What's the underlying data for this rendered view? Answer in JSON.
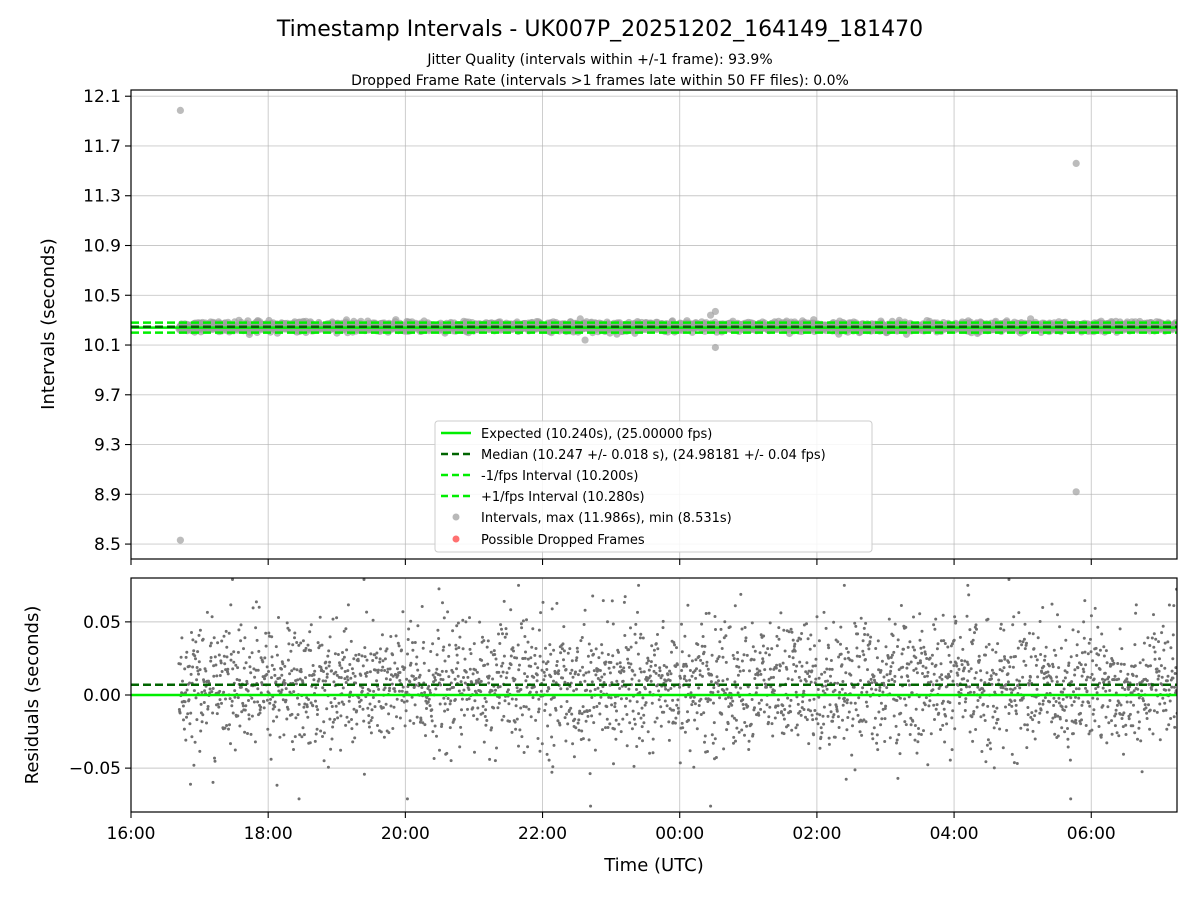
{
  "title": "Timestamp Intervals - UK007P_20251202_164149_181470",
  "subtitle_lines": [
    "Jitter Quality (intervals within +/-1 frame): 93.9%",
    "Dropped Frame Rate (intervals >1 frames late within 50 FF files): 0.0%"
  ],
  "colors": {
    "expected": "#00ee00",
    "median": "#006400",
    "bounds": "#00ee00",
    "points": "#a0a0a0",
    "residual_points": "#707070",
    "dropped": "#ff4040",
    "grid": "#b0b0b0"
  },
  "chart_data": [
    {
      "type": "scatter",
      "ylabel": "Intervals (seconds)",
      "xlabel": "",
      "x_unit": "hours since 16:00 UTC",
      "xlim": [
        16.0,
        31.25
      ],
      "ylim": [
        8.38,
        12.15
      ],
      "x_ticks": [
        16,
        18,
        20,
        22,
        24,
        26,
        28,
        30
      ],
      "y_ticks": [
        8.5,
        8.9,
        9.3,
        9.7,
        10.1,
        10.5,
        10.9,
        11.3,
        11.7,
        12.1
      ],
      "y_tick_labels": [
        "8.5",
        "8.9",
        "9.3",
        "9.7",
        "10.1",
        "10.5",
        "10.9",
        "11.3",
        "11.7",
        "12.1"
      ],
      "grid": true,
      "legend_position": "lower-center",
      "data_start_hour": 16.7,
      "data_end_hour": 31.25,
      "lines": [
        {
          "name": "Expected (10.240s), (25.00000 fps)",
          "y": 10.24,
          "style": "solid"
        },
        {
          "name": "Median (10.247 +/- 0.018 s), (24.98181 +/- 0.04 fps)",
          "y": 10.247,
          "style": "dashed"
        },
        {
          "name": "-1/fps Interval (10.200s)",
          "y": 10.2,
          "style": "dashed"
        },
        {
          "name": "+1/fps Interval (10.280s)",
          "y": 10.28,
          "style": "dashed"
        }
      ],
      "series": [
        {
          "name": "Intervals, max (11.986s), min (8.531s)",
          "kind": "interval-points",
          "center": 10.247,
          "spread": 0.018
        },
        {
          "name": "Possible Dropped Frames",
          "kind": "dropped-points",
          "points": []
        }
      ],
      "outliers": [
        {
          "x": 16.72,
          "y": 11.986
        },
        {
          "x": 16.72,
          "y": 8.531
        },
        {
          "x": 29.78,
          "y": 11.56
        },
        {
          "x": 29.78,
          "y": 8.92
        },
        {
          "x": 22.62,
          "y": 10.14
        },
        {
          "x": 22.55,
          "y": 10.31
        },
        {
          "x": 24.52,
          "y": 10.08
        },
        {
          "x": 24.52,
          "y": 10.37
        },
        {
          "x": 24.45,
          "y": 10.34
        }
      ]
    },
    {
      "type": "scatter",
      "ylabel": "Residuals (seconds)",
      "xlabel": "Time (UTC)",
      "x_unit": "hours since 16:00 UTC",
      "xlim": [
        16.0,
        31.25
      ],
      "ylim": [
        -0.08,
        0.08
      ],
      "x_ticks": [
        16,
        18,
        20,
        22,
        24,
        26,
        28,
        30
      ],
      "x_tick_labels": [
        "16:00",
        "18:00",
        "20:00",
        "22:00",
        "00:00",
        "02:00",
        "04:00",
        "06:00"
      ],
      "y_ticks": [
        -0.05,
        0.0,
        0.05
      ],
      "y_tick_labels": [
        "−0.05",
        "0.00",
        "0.05"
      ],
      "grid": true,
      "lines": [
        {
          "name": "expected residual",
          "y": 0.0,
          "style": "solid"
        },
        {
          "name": "median residual",
          "y": 0.007,
          "style": "dashed"
        }
      ],
      "series": [
        {
          "name": "residuals",
          "kind": "residual-points",
          "center": 0.007,
          "spread": 0.022
        }
      ],
      "outliers": [
        {
          "x": 18.45,
          "y": -0.071
        },
        {
          "x": 20.03,
          "y": -0.071
        },
        {
          "x": 22.7,
          "y": -0.076
        },
        {
          "x": 24.45,
          "y": -0.076
        },
        {
          "x": 29.7,
          "y": -0.071
        },
        {
          "x": 21.65,
          "y": 0.075
        },
        {
          "x": 23.4,
          "y": 0.075
        },
        {
          "x": 26.4,
          "y": 0.075
        },
        {
          "x": 28.2,
          "y": 0.075
        },
        {
          "x": 28.8,
          "y": 0.079
        }
      ]
    }
  ]
}
